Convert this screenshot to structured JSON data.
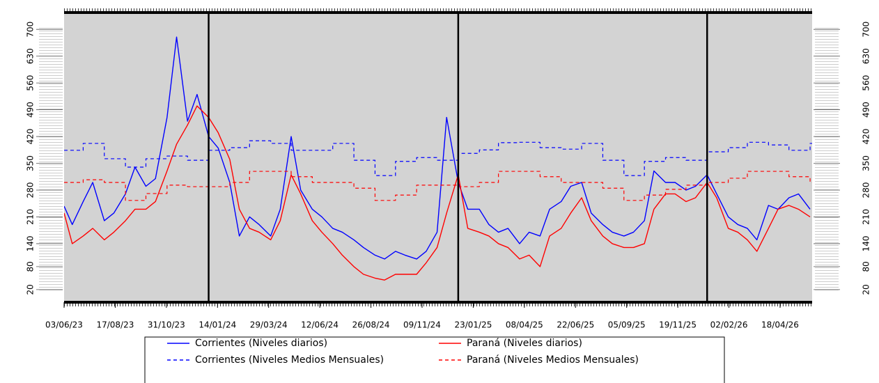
{
  "chart_data": {
    "type": "line",
    "ylim": [
      -13,
      744
    ],
    "yticks": [
      20,
      80,
      140,
      210,
      280,
      350,
      420,
      490,
      560,
      630,
      700
    ],
    "xlim": [
      "03/06/23",
      "04/06/26"
    ],
    "xticks": [
      "03/06/23",
      "17/08/23",
      "31/10/23",
      "14/01/24",
      "29/03/24",
      "12/06/24",
      "26/08/24",
      "09/11/24",
      "23/01/25",
      "08/04/25",
      "22/06/25",
      "05/09/25",
      "19/11/25",
      "02/02/26",
      "18/04/26"
    ],
    "vlines": [
      "01/01/24",
      "01/01/25",
      "01/01/26"
    ],
    "series": [
      {
        "name": "Corrientes (Niveles diarios)",
        "color": "#0000ff",
        "dash": false,
        "x": [
          "03/06/23",
          "15/06/23",
          "01/07/23",
          "15/07/23",
          "01/08/23",
          "15/08/23",
          "01/09/23",
          "15/09/23",
          "01/10/23",
          "15/10/23",
          "01/11/23",
          "15/11/23",
          "01/12/23",
          "15/12/23",
          "01/01/24",
          "15/01/24",
          "01/02/24",
          "15/02/24",
          "01/03/24",
          "15/03/24",
          "01/04/24",
          "15/04/24",
          "01/05/24",
          "15/05/24",
          "01/06/24",
          "15/06/24",
          "01/07/24",
          "15/07/24",
          "01/08/24",
          "15/08/24",
          "01/09/24",
          "15/09/24",
          "01/10/24",
          "15/10/24",
          "01/11/24",
          "15/11/24",
          "01/12/24",
          "15/12/24",
          "01/01/25",
          "15/01/25",
          "01/02/25",
          "15/02/25",
          "01/03/25",
          "15/03/25",
          "01/04/25",
          "15/04/25",
          "01/05/25",
          "15/05/25",
          "01/06/25",
          "15/06/25",
          "01/07/25",
          "15/07/25",
          "01/08/25",
          "15/08/25",
          "01/09/25",
          "15/09/25",
          "01/10/25",
          "15/10/25",
          "01/11/25",
          "15/11/25",
          "01/12/25",
          "15/12/25",
          "01/01/26",
          "15/01/26",
          "01/02/26",
          "15/02/26",
          "01/03/26",
          "15/03/26",
          "01/04/26",
          "15/04/26",
          "01/05/26",
          "15/05/26",
          "01/06/26"
        ],
        "values": [
          238,
          190,
          250,
          300,
          200,
          220,
          270,
          340,
          290,
          310,
          470,
          680,
          460,
          530,
          420,
          390,
          300,
          160,
          210,
          190,
          160,
          230,
          420,
          280,
          230,
          210,
          180,
          170,
          150,
          130,
          110,
          100,
          120,
          110,
          100,
          120,
          170,
          470,
          300,
          230,
          230,
          190,
          170,
          180,
          140,
          170,
          160,
          230,
          250,
          290,
          300,
          220,
          190,
          170,
          160,
          170,
          200,
          330,
          300,
          300,
          280,
          290,
          320,
          270,
          210,
          190,
          180,
          150,
          240,
          230,
          260,
          270,
          230
        ]
      },
      {
        "name": "Paraná (Niveles diarios)",
        "color": "#ff0000",
        "dash": false,
        "x": [
          "03/06/23",
          "15/06/23",
          "01/07/23",
          "15/07/23",
          "01/08/23",
          "15/08/23",
          "01/09/23",
          "15/09/23",
          "01/10/23",
          "15/10/23",
          "01/11/23",
          "15/11/23",
          "01/12/23",
          "15/12/23",
          "01/01/24",
          "15/01/24",
          "01/02/24",
          "15/02/24",
          "01/03/24",
          "15/03/24",
          "01/04/24",
          "15/04/24",
          "01/05/24",
          "15/05/24",
          "01/06/24",
          "15/06/24",
          "01/07/24",
          "15/07/24",
          "01/08/24",
          "15/08/24",
          "01/09/24",
          "15/09/24",
          "01/10/24",
          "15/10/24",
          "01/11/24",
          "15/11/24",
          "01/12/24",
          "15/12/24",
          "01/01/25",
          "15/01/25",
          "01/02/25",
          "15/02/25",
          "01/03/25",
          "15/03/25",
          "01/04/25",
          "15/04/25",
          "01/05/25",
          "15/05/25",
          "01/06/25",
          "15/06/25",
          "01/07/25",
          "15/07/25",
          "01/08/25",
          "15/08/25",
          "01/09/25",
          "15/09/25",
          "01/10/25",
          "15/10/25",
          "01/11/25",
          "15/11/25",
          "01/12/25",
          "15/12/25",
          "01/01/26",
          "15/01/26",
          "01/02/26",
          "15/02/26",
          "01/03/26",
          "15/03/26",
          "01/04/26",
          "15/04/26",
          "01/05/26",
          "15/05/26",
          "01/06/26"
        ],
        "values": [
          220,
          140,
          160,
          180,
          150,
          170,
          200,
          230,
          230,
          250,
          330,
          400,
          450,
          500,
          470,
          430,
          360,
          230,
          180,
          170,
          150,
          200,
          320,
          270,
          200,
          170,
          140,
          110,
          80,
          60,
          50,
          45,
          60,
          60,
          60,
          90,
          130,
          220,
          320,
          180,
          170,
          160,
          140,
          130,
          100,
          110,
          80,
          160,
          180,
          220,
          260,
          200,
          160,
          140,
          130,
          130,
          140,
          230,
          270,
          270,
          250,
          260,
          300,
          260,
          180,
          170,
          150,
          120,
          180,
          230,
          240,
          230,
          210
        ]
      },
      {
        "name": "Corrientes (Niveles Medios Mensuales)",
        "color": "#0000ff",
        "dash": true,
        "x": [
          "03/06/23",
          "01/07/23",
          "01/08/23",
          "01/09/23",
          "01/10/23",
          "01/11/23",
          "01/12/23",
          "01/01/24",
          "01/02/24",
          "01/03/24",
          "01/04/24",
          "01/05/24",
          "01/06/24",
          "01/07/24",
          "01/08/24",
          "01/09/24",
          "01/10/24",
          "01/11/24",
          "01/12/24",
          "01/01/25",
          "01/02/25",
          "01/03/25",
          "01/04/25",
          "01/05/25",
          "01/06/25",
          "01/07/25",
          "01/08/25",
          "01/09/25",
          "01/10/25",
          "01/11/25",
          "01/12/25",
          "01/01/26",
          "01/02/26",
          "01/03/26",
          "01/04/26",
          "01/05/26",
          "01/06/26"
        ],
        "values": [
          384,
          402,
          362,
          340,
          362,
          369,
          358,
          384,
          391,
          409,
          402,
          384,
          384,
          402,
          358,
          318,
          355,
          365,
          358,
          376,
          385,
          404,
          405,
          391,
          387,
          402,
          358,
          318,
          355,
          365,
          358,
          380,
          391,
          405,
          398,
          384,
          402
        ]
      },
      {
        "name": "Paraná (Niveles Medios Mensuales)",
        "color": "#ff0000",
        "dash": true,
        "x": [
          "03/06/23",
          "01/07/23",
          "01/08/23",
          "01/09/23",
          "01/10/23",
          "01/11/23",
          "01/12/23",
          "01/01/24",
          "01/02/24",
          "01/03/24",
          "01/04/24",
          "01/05/24",
          "01/06/24",
          "01/07/24",
          "01/08/24",
          "01/09/24",
          "01/10/24",
          "01/11/24",
          "01/12/24",
          "01/01/25",
          "01/02/25",
          "01/03/25",
          "01/04/25",
          "01/05/25",
          "01/06/25",
          "01/07/25",
          "01/08/25",
          "01/09/25",
          "01/10/25",
          "01/11/25",
          "01/12/25",
          "01/01/26",
          "01/02/26",
          "01/03/26",
          "01/04/26",
          "01/05/26",
          "01/06/26"
        ],
        "values": [
          300,
          307,
          300,
          253,
          271,
          293,
          289,
          289,
          300,
          329,
          329,
          315,
          300,
          300,
          285,
          253,
          267,
          293,
          293,
          289,
          300,
          329,
          329,
          315,
          300,
          300,
          285,
          253,
          267,
          282,
          293,
          300,
          311,
          329,
          329,
          315,
          300
        ]
      }
    ]
  }
}
